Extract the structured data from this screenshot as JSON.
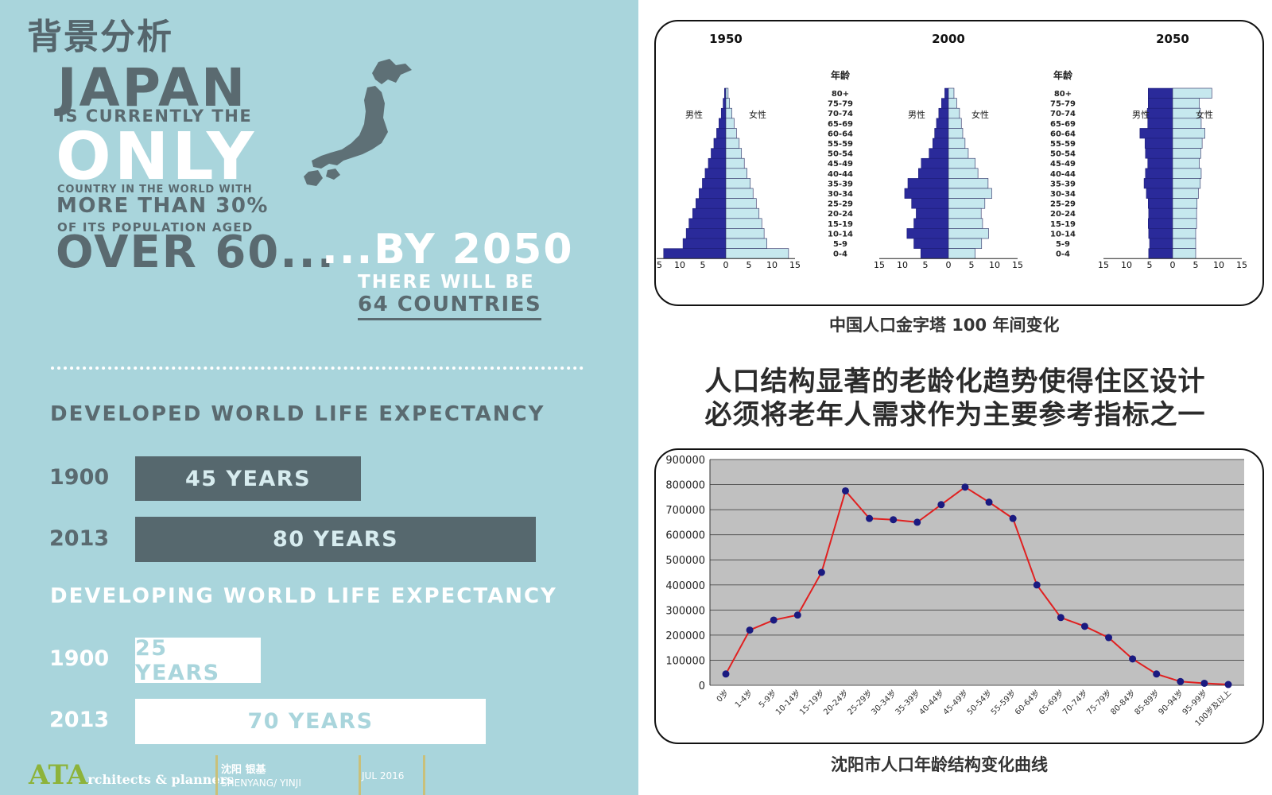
{
  "left": {
    "heading": "背景分析",
    "japan": "JAPAN",
    "is_currently": "IS CURRENTLY THE",
    "only": "ONLY",
    "country_line": "COUNTRY IN THE WORLD WITH",
    "more_than": "MORE THAN 30%",
    "of_its": "OF ITS POPULATION AGED",
    "over": "OVER 60...",
    "by_2050": "...BY 2050",
    "there_will_be": "THERE WILL BE",
    "countries": "64 COUNTRIES",
    "developed_title": "DEVELOPED WORLD LIFE EXPECTANCY",
    "developing_title": "DEVELOPING WORLD LIFE EXPECTANCY",
    "life_expectancy": {
      "developed": [
        {
          "year": "1900",
          "label": "45 YEARS",
          "years": 45
        },
        {
          "year": "2013",
          "label": "80 YEARS",
          "years": 80
        }
      ],
      "developing": [
        {
          "year": "1900",
          "label": "25 YEARS",
          "years": 25
        },
        {
          "year": "2013",
          "label": "70 YEARS",
          "years": 70
        }
      ]
    },
    "footer": {
      "logo": "ATA",
      "logo_tail": "rchitects & planners",
      "city_cn": "沈阳  银基",
      "city_en": "SHENYANG/ YINJI",
      "date": "JUL 2016"
    },
    "colors": {
      "bg": "#a9d5dc",
      "dark": "#56686e",
      "logo": "#8db33a"
    }
  },
  "right": {
    "pyramid_caption": "中国人口金字塔 100 年间变化",
    "statement_line1": "人口结构显著的老龄化趋势使得住区设计",
    "statement_line2": "必须将老年人需求作为主要参考指标之一",
    "line_caption": "沈阳市人口年龄结构变化曲线"
  },
  "chart_data": [
    {
      "type": "bar",
      "subtype": "population-pyramid",
      "panels": [
        "1950",
        "2000",
        "2050"
      ],
      "age_axis_title": "年龄",
      "male_label": "男性",
      "female_label": "女性",
      "categories": [
        "80+",
        "75-79",
        "70-74",
        "65-69",
        "60-64",
        "55-59",
        "50-54",
        "45-49",
        "40-44",
        "35-39",
        "30-34",
        "25-29",
        "20-24",
        "15-19",
        "10-14",
        "5-9",
        "0-4"
      ],
      "x_ticks": [
        "15",
        "10",
        "5",
        "0",
        "5",
        "10",
        "15"
      ],
      "series": [
        {
          "name": "1950",
          "male": [
            0.3,
            0.6,
            1.0,
            1.5,
            2.0,
            2.6,
            3.2,
            3.8,
            4.5,
            5.1,
            5.8,
            6.5,
            7.2,
            8.0,
            8.6,
            9.3,
            13.5
          ],
          "female": [
            0.5,
            0.8,
            1.3,
            1.8,
            2.3,
            2.9,
            3.4,
            4.0,
            4.6,
            5.3,
            5.9,
            6.6,
            7.2,
            7.8,
            8.3,
            8.9,
            13.6
          ]
        },
        {
          "name": "2000",
          "male": [
            0.8,
            1.5,
            2.1,
            2.6,
            3.0,
            3.4,
            4.2,
            5.9,
            6.5,
            8.8,
            9.5,
            8.0,
            7.0,
            7.5,
            9.0,
            7.5,
            6.0
          ],
          "female": [
            1.2,
            1.8,
            2.4,
            2.8,
            3.1,
            3.6,
            4.3,
            5.8,
            6.4,
            8.6,
            9.4,
            7.9,
            7.1,
            7.4,
            8.7,
            7.2,
            5.8
          ]
        },
        {
          "name": "2050",
          "male": [
            5.3,
            5.3,
            5.5,
            5.4,
            7.1,
            6.0,
            5.9,
            5.4,
            5.9,
            6.2,
            5.7,
            5.3,
            5.2,
            5.3,
            5.2,
            5.0,
            5.2
          ],
          "female": [
            8.5,
            5.8,
            6.0,
            6.2,
            7.0,
            6.4,
            6.1,
            5.8,
            6.2,
            6.0,
            5.6,
            5.3,
            5.2,
            5.2,
            5.0,
            5.0,
            5.0
          ]
        }
      ]
    },
    {
      "type": "line",
      "categories": [
        "0岁",
        "1-4岁",
        "5-9岁",
        "10-14岁",
        "15-19岁",
        "20-24岁",
        "25-29岁",
        "30-34岁",
        "35-39岁",
        "40-44岁",
        "45-49岁",
        "50-54岁",
        "55-59岁",
        "60-64岁",
        "65-69岁",
        "70-74岁",
        "75-79岁",
        "80-84岁",
        "85-89岁",
        "90-94岁",
        "95-99岁",
        "100岁及以上"
      ],
      "series": [
        {
          "values": [
            45000,
            220000,
            260000,
            280000,
            450000,
            775000,
            665000,
            660000,
            650000,
            720000,
            790000,
            730000,
            665000,
            400000,
            270000,
            235000,
            190000,
            105000,
            45000,
            15000,
            8000,
            3000
          ]
        }
      ],
      "ylim": [
        0,
        900000
      ],
      "y_ticks": [
        "900000",
        "800000",
        "700000",
        "600000",
        "500000",
        "400000",
        "300000",
        "200000",
        "100000",
        "0"
      ],
      "line_color": "#e02020",
      "marker_color": "#1a1a80",
      "grid": true,
      "plot_bg": "#c0c0c0"
    }
  ]
}
